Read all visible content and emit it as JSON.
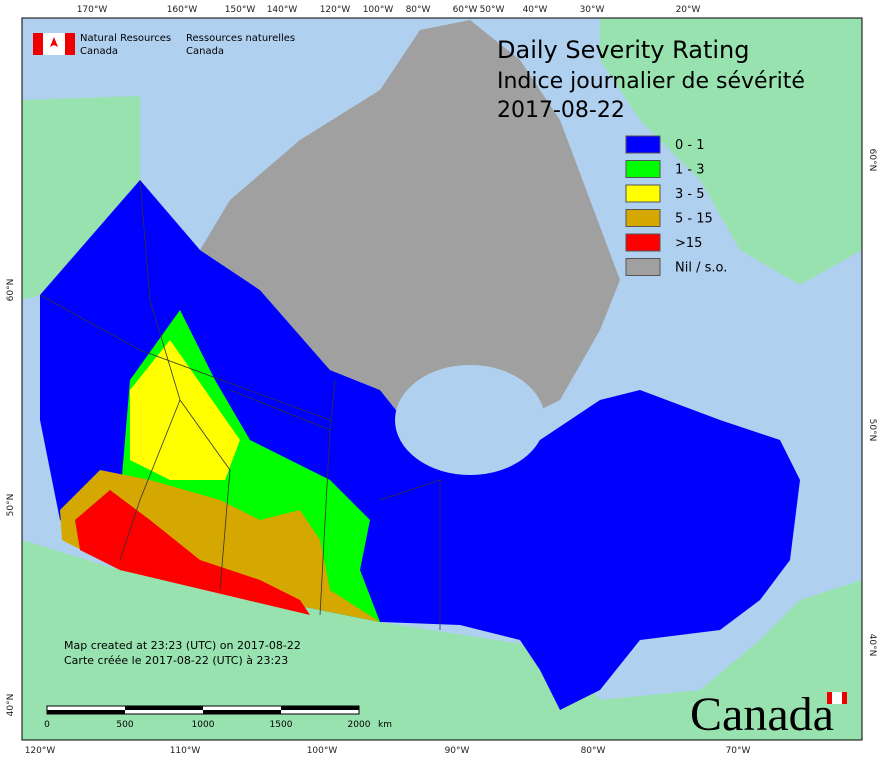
{
  "header": {
    "org_en": [
      "Natural Resources",
      "Canada"
    ],
    "org_fr": [
      "Ressources naturelles",
      "Canada"
    ]
  },
  "title": [
    "Daily Severity Rating",
    "Indice journalier de sévérité",
    "2017-08-22"
  ],
  "legend": [
    {
      "label": "0 - 1",
      "color": "#0000ff"
    },
    {
      "label": "1 - 3",
      "color": "#00ff00"
    },
    {
      "label": "3 - 5",
      "color": "#ffff00"
    },
    {
      "label": "5 - 15",
      "color": "#d4a800"
    },
    {
      "label": ">15",
      "color": "#ff0000"
    },
    {
      "label": "Nil / s.o.",
      "color": "#a0a0a0"
    }
  ],
  "notes": [
    "Map created at 23:23 (UTC) on 2017-08-22",
    "Carte créée le 2017-08-22 (UTC) à 23:23"
  ],
  "scale_bar": {
    "labels": [
      "0",
      "500",
      "1000",
      "1500",
      "2000"
    ],
    "unit": "km"
  },
  "graticule": {
    "top": [
      "170°W",
      "160°W",
      "150°W",
      "140°W",
      "120°W",
      "100°W",
      "80°W",
      "60°W",
      "50°W",
      "40°W",
      "30°W",
      "20°W"
    ],
    "bottom": [
      "120°W",
      "110°W",
      "100°W",
      "90°W",
      "80°W",
      "70°W"
    ],
    "left": [
      "60°N",
      "50°N",
      "40°N"
    ],
    "right": [
      "60°N",
      "50°N",
      "40°N"
    ]
  },
  "wordmark": "Canada"
}
